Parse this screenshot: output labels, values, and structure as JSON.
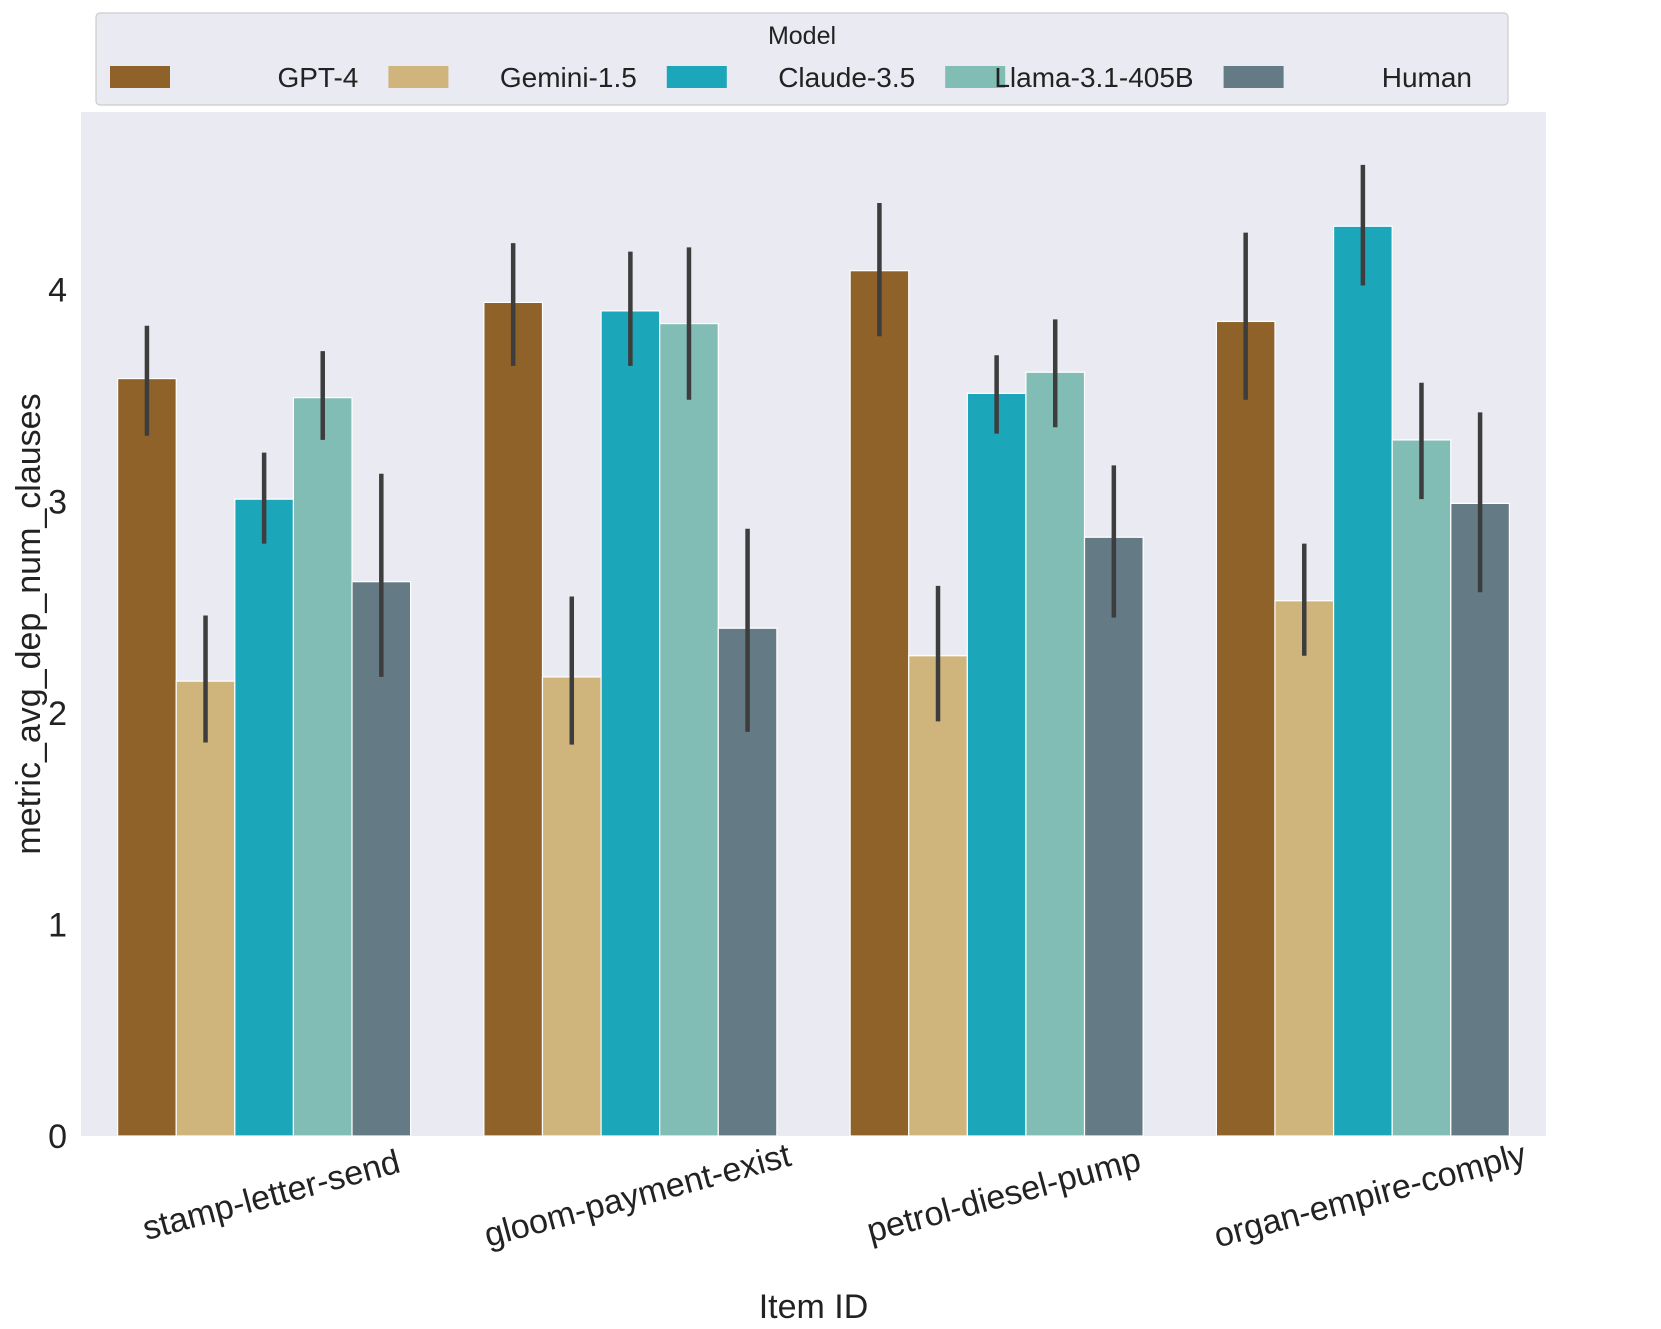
{
  "chart_data": {
    "type": "bar",
    "title": "",
    "xlabel": "Item ID",
    "ylabel": "metric_avg_dep_num_clauses",
    "ylim": [
      0,
      4.84
    ],
    "yticks": [
      0,
      1,
      2,
      3,
      4
    ],
    "grid": false,
    "legend": {
      "title": "Model",
      "placement": "top-center"
    },
    "categories": [
      "stamp-letter-send",
      "gloom-payment-exist",
      "petrol-diesel-pump",
      "organ-empire-comply"
    ],
    "series": [
      {
        "name": "GPT-4",
        "color": "#8f6229",
        "values": [
          3.58,
          3.94,
          4.09,
          3.85
        ],
        "ci": [
          [
            3.31,
            3.83
          ],
          [
            3.64,
            4.22
          ],
          [
            3.78,
            4.41
          ],
          [
            3.48,
            4.27
          ]
        ]
      },
      {
        "name": "Gemini-1.5",
        "color": "#cfb57c",
        "values": [
          2.15,
          2.17,
          2.27,
          2.53
        ],
        "ci": [
          [
            1.86,
            2.46
          ],
          [
            1.85,
            2.55
          ],
          [
            1.96,
            2.6
          ],
          [
            2.27,
            2.8
          ]
        ]
      },
      {
        "name": "Claude-3.5",
        "color": "#1ca6ba",
        "values": [
          3.01,
          3.9,
          3.51,
          4.3
        ],
        "ci": [
          [
            2.8,
            3.23
          ],
          [
            3.64,
            4.18
          ],
          [
            3.32,
            3.69
          ],
          [
            4.02,
            4.59
          ]
        ]
      },
      {
        "name": "Llama-3.1-405B",
        "color": "#82bdb5",
        "values": [
          3.49,
          3.84,
          3.61,
          3.29
        ],
        "ci": [
          [
            3.29,
            3.71
          ],
          [
            3.48,
            4.2
          ],
          [
            3.35,
            3.86
          ],
          [
            3.01,
            3.56
          ]
        ]
      },
      {
        "name": "Human",
        "color": "#647a85",
        "values": [
          2.62,
          2.4,
          2.83,
          2.99
        ],
        "ci": [
          [
            2.17,
            3.13
          ],
          [
            1.91,
            2.87
          ],
          [
            2.45,
            3.17
          ],
          [
            2.57,
            3.42
          ]
        ]
      }
    ]
  }
}
